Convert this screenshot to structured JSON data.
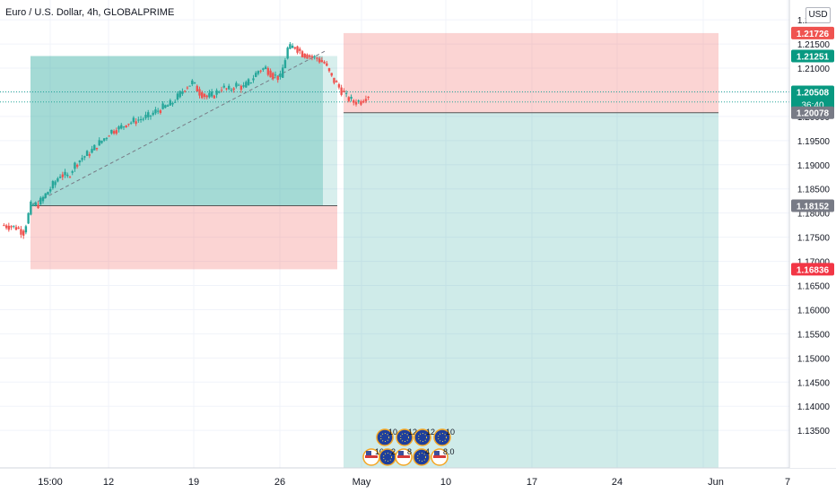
{
  "chart_header": {
    "title": "Euro / U.S. Dollar, 4h, GLOBALPRIME",
    "currency_button": "USD"
  },
  "colors": {
    "profit_fill": "#26a69a",
    "loss_fill": "#ef5350",
    "bull_candle": "#26a69a",
    "bear_candle": "#ef5350",
    "axis_text": "#131722",
    "grid": "#f0f3fa"
  },
  "chart_data": {
    "type": "candlestick",
    "title": "Euro / U.S. Dollar, 4h, GLOBALPRIME",
    "x_tick_labels": [
      "15:00",
      "12",
      "19",
      "26",
      "May",
      "10",
      "17",
      "24",
      "Jun",
      "7"
    ],
    "y_tick_labels": [
      "1.22000",
      "1.21500",
      "1.21000",
      "1.20500",
      "1.20000",
      "1.19500",
      "1.19000",
      "1.18500",
      "1.18000",
      "1.17500",
      "1.17000",
      "1.16500",
      "1.16000",
      "1.15500",
      "1.15000",
      "1.14500",
      "1.14000",
      "1.13500"
    ],
    "ylim": [
      1.1315,
      1.223
    ],
    "grid": true,
    "price_series": [
      1.1775,
      1.1773,
      1.177,
      1.176,
      1.1815,
      1.1818,
      1.1838,
      1.1858,
      1.188,
      1.1875,
      1.19,
      1.1915,
      1.1925,
      1.194,
      1.1955,
      1.197,
      1.1975,
      1.1985,
      1.199,
      1.1995,
      1.2,
      1.201,
      1.2018,
      1.2025,
      1.204,
      1.206,
      1.207,
      1.205,
      1.204,
      1.2045,
      1.206,
      1.2055,
      1.2065,
      1.206,
      1.2075,
      1.2095,
      1.21,
      1.2085,
      1.208,
      1.214,
      1.2145,
      1.213,
      1.2125,
      1.212,
      1.211,
      1.208,
      1.206,
      1.204,
      1.203,
      1.2032,
      1.2045
    ],
    "positions": [
      {
        "kind": "long",
        "entry": 1.18152,
        "target": 1.21251,
        "stop": 1.16836
      },
      {
        "kind": "short",
        "entry": 1.20078,
        "target": 1.1315,
        "stop": 1.21726
      }
    ],
    "price_labels": [
      {
        "text": "1.21726",
        "value": 1.21726,
        "bg": "#ef5350"
      },
      {
        "text": "1.21251",
        "value": 1.21251,
        "bg": "#089981"
      },
      {
        "text": "1.20508",
        "value": 1.20508,
        "bg": "#089981",
        "sub": "36:40"
      },
      {
        "text": "1.20078",
        "value": 1.20078,
        "bg": "#787b86"
      },
      {
        "text": "1.18152",
        "value": 1.18152,
        "bg": "#787b86"
      },
      {
        "text": "1.16836",
        "value": 1.16836,
        "bg": "#f23645"
      }
    ],
    "event_icons_row1": [
      "10",
      "12",
      "12",
      "10"
    ],
    "event_icons_row2": [
      "102",
      "2",
      "8",
      "4",
      "8.0"
    ]
  }
}
